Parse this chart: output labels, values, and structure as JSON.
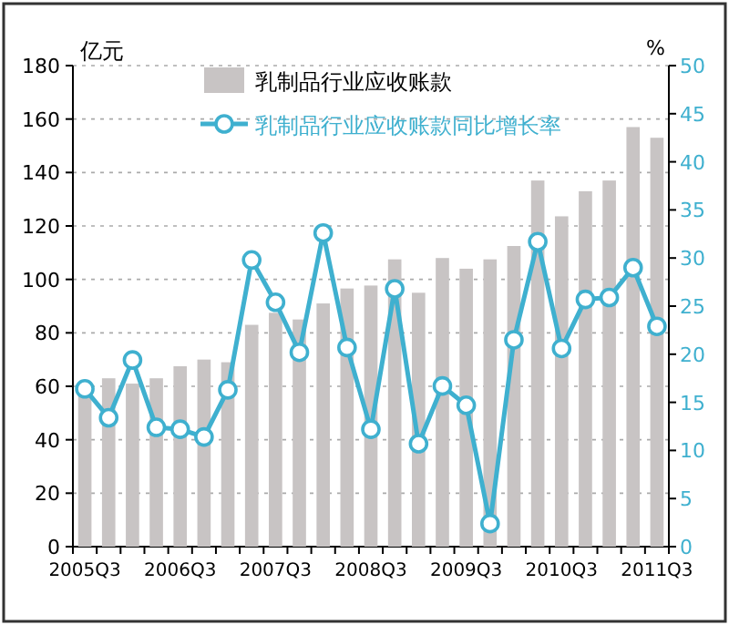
{
  "chart_data": {
    "type": "bar",
    "categories": [
      "2005Q3",
      null,
      null,
      null,
      "2006Q3",
      null,
      null,
      null,
      "2007Q3",
      null,
      null,
      null,
      "2008Q3",
      null,
      null,
      null,
      "2009Q3",
      null,
      null,
      null,
      "2010Q3",
      null,
      null,
      null,
      "2011Q3"
    ],
    "ylabel": "亿元",
    "y2label": "%",
    "ylim": [
      0,
      180
    ],
    "yticks": [
      0,
      20,
      40,
      60,
      80,
      100,
      120,
      140,
      160,
      180
    ],
    "y2lim": [
      0,
      50
    ],
    "y2ticks": [
      0,
      5,
      10,
      15,
      20,
      25,
      30,
      35,
      40,
      45,
      50
    ],
    "grid": "y",
    "legend": "top",
    "marker": "circle",
    "series": [
      {
        "name": "乳制品行业应收账款",
        "color": "#c8c4c4",
        "values": [
          58,
          63,
          61,
          63,
          67.5,
          70,
          69,
          83,
          87.5,
          85,
          91,
          96.6,
          97.7,
          107.5,
          95,
          108,
          104,
          107.5,
          112.5,
          137,
          123.6,
          133,
          137,
          157,
          153
        ]
      },
      {
        "name": "乳制品行业应收账款同比增长率",
        "type": "line",
        "axis": "y2",
        "color": "#3fb0cf",
        "values": [
          16.4,
          13.4,
          19.4,
          12.4,
          12.2,
          11.4,
          16.3,
          29.8,
          25.4,
          20.2,
          32.6,
          20.7,
          12.2,
          26.8,
          10.7,
          16.7,
          14.7,
          2.4,
          21.5,
          31.7,
          20.6,
          25.7,
          25.9,
          29,
          22.9
        ]
      }
    ]
  }
}
